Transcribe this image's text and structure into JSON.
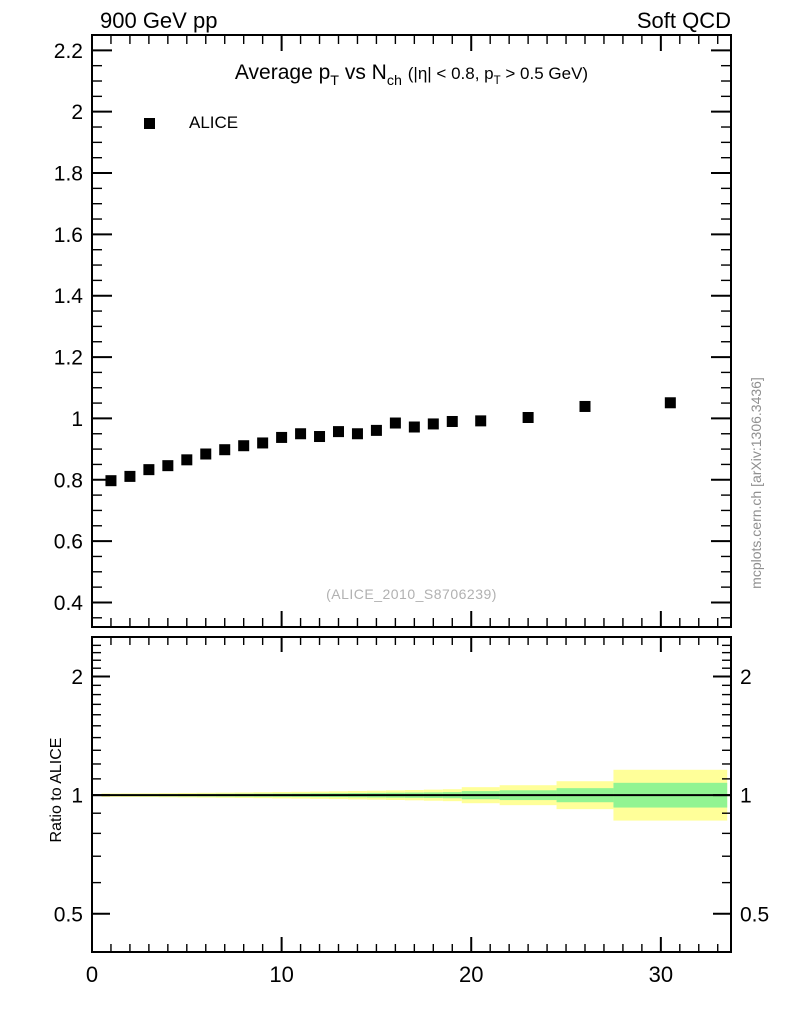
{
  "header": {
    "left": "900 GeV pp",
    "right": "Soft QCD"
  },
  "plot_title": {
    "part1": "Average p",
    "sub1": "T",
    "part2": " vs N",
    "sub2": "ch",
    "part3": " (|η| < 0.8, p",
    "sub3": "T",
    "part4": " > 0.5 GeV)"
  },
  "legend": {
    "entries": [
      {
        "label": "ALICE",
        "marker": "filled-square",
        "color": "#000000"
      }
    ]
  },
  "watermark": "(ALICE_2010_S8706239)",
  "side_note": "mcplots.cern.ch [arXiv:1306.3436]",
  "ratio_label": "Ratio to ALICE",
  "colors": {
    "band_outer": "#ffff99",
    "band_inner": "#92f492",
    "marker": "#000000",
    "frame": "#000000",
    "watermark_gray": "#b1b1b1",
    "side_note_gray": "#8f8f8f"
  },
  "chart_data": {
    "type": "scatter",
    "title": "Average pT vs Nch (|η| < 0.8, pT > 0.5 GeV)",
    "panels": {
      "main": {
        "x_range": [
          0,
          33.7
        ],
        "y_range": [
          0.32,
          2.25
        ],
        "x_major_ticks": [
          {
            "v": 0,
            "label": "0"
          },
          {
            "v": 10,
            "label": "10"
          },
          {
            "v": 20,
            "label": "20"
          },
          {
            "v": 30,
            "label": "30"
          }
        ],
        "x_minor_step": 1,
        "y_major_ticks": [
          {
            "v": 2.2,
            "label": "2.2"
          },
          {
            "v": 2.0,
            "label": "2"
          },
          {
            "v": 1.8,
            "label": "1.8"
          },
          {
            "v": 1.6,
            "label": "1.6"
          },
          {
            "v": 1.4,
            "label": "1.4"
          },
          {
            "v": 1.2,
            "label": "1.2"
          },
          {
            "v": 1.0,
            "label": "1"
          },
          {
            "v": 0.8,
            "label": "0.8"
          },
          {
            "v": 0.6,
            "label": "0.6"
          },
          {
            "v": 0.4,
            "label": "0.4"
          }
        ],
        "y_minor_step": 0.05,
        "series": [
          {
            "name": "ALICE",
            "marker": "square",
            "marker_size": 11,
            "x": [
              1,
              2,
              3,
              4,
              5,
              6,
              7,
              8,
              9,
              10,
              11,
              12,
              13,
              14,
              15,
              16,
              17,
              18,
              19,
              20.5,
              23,
              26,
              30.5
            ],
            "y": [
              0.797,
              0.811,
              0.833,
              0.846,
              0.865,
              0.884,
              0.898,
              0.911,
              0.92,
              0.938,
              0.95,
              0.941,
              0.957,
              0.95,
              0.961,
              0.985,
              0.972,
              0.982,
              0.99,
              0.992,
              1.003,
              1.039,
              1.051
            ]
          }
        ]
      },
      "ratio": {
        "scale": "log",
        "y_range": [
          0.4,
          2.52
        ],
        "y_major_ticks": [
          {
            "v": 2,
            "label": "2"
          },
          {
            "v": 1,
            "label": "1"
          },
          {
            "v": 0.5,
            "label": "0.5"
          }
        ],
        "y_minor_ticks": [
          0.6,
          0.7,
          0.8,
          0.9,
          1.1,
          1.2,
          1.3,
          1.4,
          1.5,
          1.6,
          1.7,
          1.8,
          1.9,
          2.1,
          2.2,
          2.3,
          2.4
        ],
        "reference_line": 1,
        "band_bins": [
          {
            "x1": 0.5,
            "x2": 1.5,
            "outer_pct": 1.0,
            "inner_pct": 0.5
          },
          {
            "x1": 1.5,
            "x2": 2.5,
            "outer_pct": 1.05,
            "inner_pct": 0.55
          },
          {
            "x1": 2.5,
            "x2": 3.5,
            "outer_pct": 1.1,
            "inner_pct": 0.6
          },
          {
            "x1": 3.5,
            "x2": 4.5,
            "outer_pct": 1.2,
            "inner_pct": 0.65
          },
          {
            "x1": 4.5,
            "x2": 5.5,
            "outer_pct": 1.3,
            "inner_pct": 0.7
          },
          {
            "x1": 5.5,
            "x2": 6.5,
            "outer_pct": 1.4,
            "inner_pct": 0.75
          },
          {
            "x1": 6.5,
            "x2": 7.5,
            "outer_pct": 1.5,
            "inner_pct": 0.8
          },
          {
            "x1": 7.5,
            "x2": 8.5,
            "outer_pct": 1.6,
            "inner_pct": 0.85
          },
          {
            "x1": 8.5,
            "x2": 9.5,
            "outer_pct": 1.75,
            "inner_pct": 0.9
          },
          {
            "x1": 9.5,
            "x2": 10.5,
            "outer_pct": 1.9,
            "inner_pct": 0.95
          },
          {
            "x1": 10.5,
            "x2": 11.5,
            "outer_pct": 2.0,
            "inner_pct": 1.0
          },
          {
            "x1": 11.5,
            "x2": 12.5,
            "outer_pct": 2.15,
            "inner_pct": 1.1
          },
          {
            "x1": 12.5,
            "x2": 13.5,
            "outer_pct": 2.3,
            "inner_pct": 1.15
          },
          {
            "x1": 13.5,
            "x2": 14.5,
            "outer_pct": 2.5,
            "inner_pct": 1.25
          },
          {
            "x1": 14.5,
            "x2": 15.5,
            "outer_pct": 2.65,
            "inner_pct": 1.35
          },
          {
            "x1": 15.5,
            "x2": 16.5,
            "outer_pct": 2.85,
            "inner_pct": 1.45
          },
          {
            "x1": 16.5,
            "x2": 17.5,
            "outer_pct": 3.05,
            "inner_pct": 1.55
          },
          {
            "x1": 17.5,
            "x2": 18.5,
            "outer_pct": 3.3,
            "inner_pct": 1.65
          },
          {
            "x1": 18.5,
            "x2": 19.5,
            "outer_pct": 3.55,
            "inner_pct": 1.8
          },
          {
            "x1": 19.5,
            "x2": 21.5,
            "outer_pct": 4.8,
            "inner_pct": 2.4
          },
          {
            "x1": 21.5,
            "x2": 24.5,
            "outer_pct": 6.0,
            "inner_pct": 2.9
          },
          {
            "x1": 24.5,
            "x2": 27.5,
            "outer_pct": 8.5,
            "inner_pct": 4.2
          },
          {
            "x1": 27.5,
            "x2": 33.5,
            "outer_pct": 16.0,
            "inner_pct": 7.5
          }
        ]
      }
    }
  }
}
